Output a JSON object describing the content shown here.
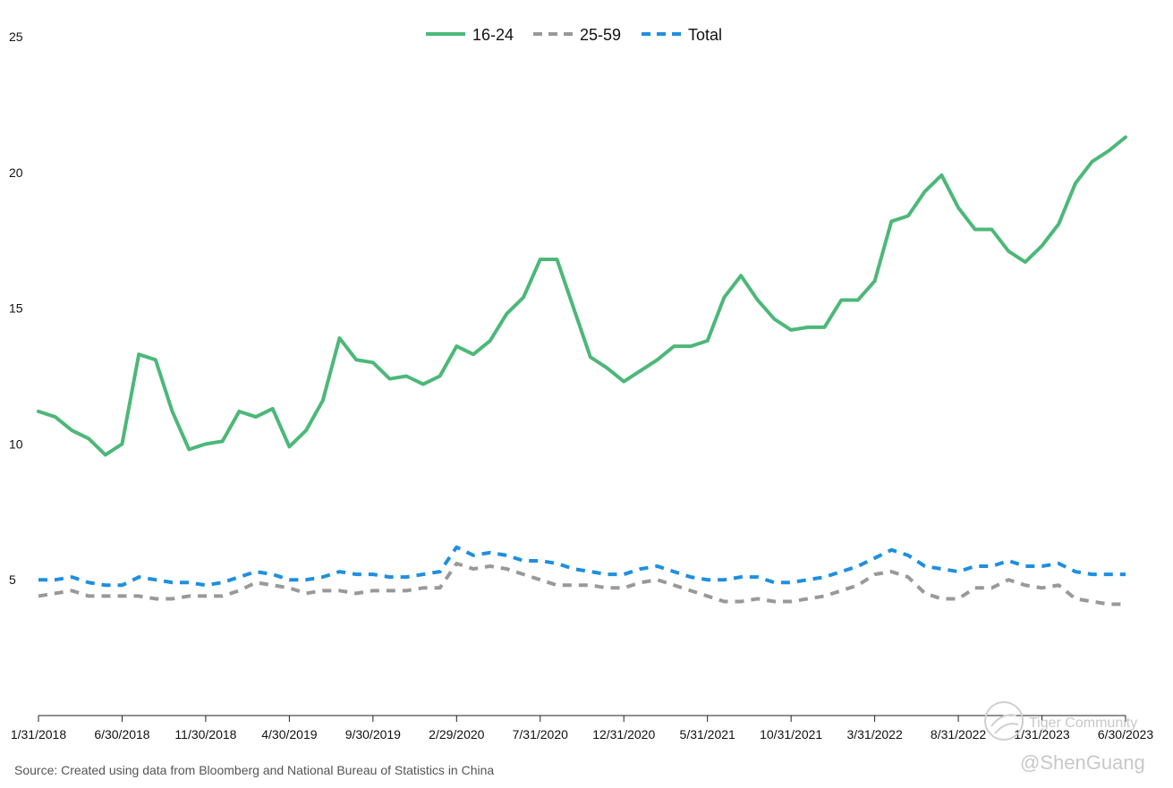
{
  "chart_data": {
    "type": "line",
    "title": "",
    "xlabel": "",
    "ylabel": "",
    "ylim": [
      0,
      25
    ],
    "yticks": [
      5,
      10,
      15,
      20,
      25
    ],
    "grid": false,
    "legend_position": "top-center",
    "x": [
      "1/31/2018",
      "2/28/2018",
      "3/31/2018",
      "4/30/2018",
      "5/31/2018",
      "6/30/2018",
      "7/31/2018",
      "8/31/2018",
      "9/30/2018",
      "10/31/2018",
      "11/30/2018",
      "12/31/2018",
      "1/31/2019",
      "2/28/2019",
      "3/31/2019",
      "4/30/2019",
      "5/31/2019",
      "6/30/2019",
      "7/31/2019",
      "8/31/2019",
      "9/30/2019",
      "10/31/2019",
      "11/30/2019",
      "12/31/2019",
      "1/31/2020",
      "2/29/2020",
      "3/31/2020",
      "4/30/2020",
      "5/31/2020",
      "6/30/2020",
      "7/31/2020",
      "8/31/2020",
      "9/30/2020",
      "10/31/2020",
      "11/30/2020",
      "12/31/2020",
      "1/31/2021",
      "2/28/2021",
      "3/31/2021",
      "4/30/2021",
      "5/31/2021",
      "6/30/2021",
      "7/31/2021",
      "8/31/2021",
      "9/30/2021",
      "10/31/2021",
      "11/30/2021",
      "12/31/2021",
      "1/31/2022",
      "2/28/2022",
      "3/31/2022",
      "4/30/2022",
      "5/31/2022",
      "6/30/2022",
      "7/31/2022",
      "8/31/2022",
      "9/30/2022",
      "10/31/2022",
      "11/30/2022",
      "12/31/2022",
      "1/31/2023",
      "2/28/2023",
      "3/31/2023",
      "4/30/2023",
      "5/31/2023",
      "6/30/2023"
    ],
    "xtick_labels": [
      "1/31/2018",
      "6/30/2018",
      "11/30/2018",
      "4/30/2019",
      "9/30/2019",
      "2/29/2020",
      "7/31/2020",
      "12/31/2020",
      "5/31/2021",
      "10/31/2021",
      "3/31/2022",
      "8/31/2022",
      "1/31/2023",
      "6/30/2023"
    ],
    "series": [
      {
        "name": "16-24",
        "color": "#4cb878",
        "style": "solid",
        "values": [
          11.2,
          11.0,
          10.5,
          10.2,
          9.6,
          10.0,
          13.3,
          13.1,
          11.2,
          9.8,
          10.0,
          10.1,
          11.2,
          11.0,
          11.3,
          9.9,
          10.5,
          11.6,
          13.9,
          13.1,
          13.0,
          12.4,
          12.5,
          12.2,
          12.5,
          13.6,
          13.3,
          13.8,
          14.8,
          15.4,
          16.8,
          16.8,
          15.0,
          13.2,
          12.8,
          12.3,
          12.7,
          13.1,
          13.6,
          13.6,
          13.8,
          15.4,
          16.2,
          15.3,
          14.6,
          14.2,
          14.3,
          14.3,
          15.3,
          15.3,
          16.0,
          18.2,
          18.4,
          19.3,
          19.9,
          18.7,
          17.9,
          17.9,
          17.1,
          16.7,
          17.3,
          18.1,
          19.6,
          20.4,
          20.8,
          21.3
        ]
      },
      {
        "name": "25-59",
        "color": "#999999",
        "style": "dashed",
        "values": [
          4.4,
          4.5,
          4.6,
          4.4,
          4.4,
          4.4,
          4.4,
          4.3,
          4.3,
          4.4,
          4.4,
          4.4,
          4.6,
          4.9,
          4.8,
          4.7,
          4.5,
          4.6,
          4.6,
          4.5,
          4.6,
          4.6,
          4.6,
          4.7,
          4.7,
          5.6,
          5.4,
          5.5,
          5.4,
          5.2,
          5.0,
          4.8,
          4.8,
          4.8,
          4.7,
          4.7,
          4.9,
          5.0,
          4.8,
          4.6,
          4.4,
          4.2,
          4.2,
          4.3,
          4.2,
          4.2,
          4.3,
          4.4,
          4.6,
          4.8,
          5.2,
          5.3,
          5.1,
          4.5,
          4.3,
          4.3,
          4.7,
          4.7,
          5.0,
          4.8,
          4.7,
          4.8,
          4.3,
          4.2,
          4.1,
          4.1
        ]
      },
      {
        "name": "Total",
        "color": "#1e8fe0",
        "style": "dashed",
        "values": [
          5.0,
          5.0,
          5.1,
          4.9,
          4.8,
          4.8,
          5.1,
          5.0,
          4.9,
          4.9,
          4.8,
          4.9,
          5.1,
          5.3,
          5.2,
          5.0,
          5.0,
          5.1,
          5.3,
          5.2,
          5.2,
          5.1,
          5.1,
          5.2,
          5.3,
          6.2,
          5.9,
          6.0,
          5.9,
          5.7,
          5.7,
          5.6,
          5.4,
          5.3,
          5.2,
          5.2,
          5.4,
          5.5,
          5.3,
          5.1,
          5.0,
          5.0,
          5.1,
          5.1,
          4.9,
          4.9,
          5.0,
          5.1,
          5.3,
          5.5,
          5.8,
          6.1,
          5.9,
          5.5,
          5.4,
          5.3,
          5.5,
          5.5,
          5.7,
          5.5,
          5.5,
          5.6,
          5.3,
          5.2,
          5.2,
          5.2
        ]
      }
    ],
    "source": "Source: Created using data from Bloomberg and National Bureau of Statistics in China"
  },
  "watermark": {
    "line1": "Tiger Community",
    "line2": "@ShenGuang"
  }
}
